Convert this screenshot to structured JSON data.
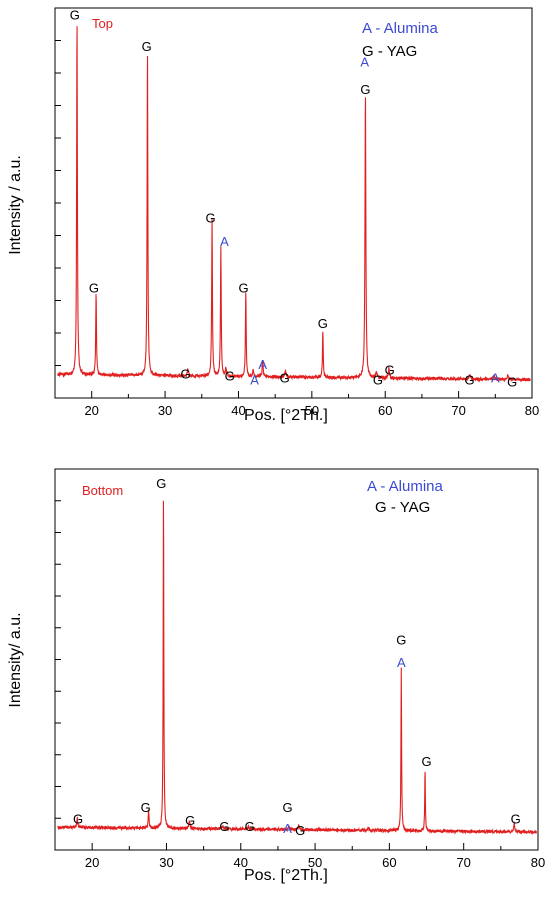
{
  "chart_data": [
    {
      "type": "line",
      "panel_label": "Top",
      "xlabel": "Pos. [°2Th.]",
      "ylabel": "Intensity / a.u.",
      "xlim": [
        15,
        80
      ],
      "xticks": [
        20,
        30,
        40,
        50,
        60,
        70,
        80
      ],
      "ylim": [
        0,
        100
      ],
      "baseline": 6,
      "legend": {
        "position": "top-right",
        "entries": [
          {
            "text": "A - Alumina",
            "color": "#3b4bd1"
          },
          {
            "text": "G - YAG",
            "color": "#000000"
          }
        ]
      },
      "line_color": "#e02020",
      "peaks": [
        {
          "x": 18.0,
          "y": 92,
          "w": 0.12
        },
        {
          "x": 20.6,
          "y": 21,
          "w": 0.12
        },
        {
          "x": 27.6,
          "y": 84,
          "w": 0.12
        },
        {
          "x": 33.1,
          "y": 1.5,
          "w": 0.2
        },
        {
          "x": 36.4,
          "y": 40,
          "w": 0.12
        },
        {
          "x": 37.6,
          "y": 33,
          "w": 0.12
        },
        {
          "x": 38.3,
          "y": 2,
          "w": 0.2
        },
        {
          "x": 41.0,
          "y": 22,
          "w": 0.12
        },
        {
          "x": 42.0,
          "y": 2,
          "w": 0.15
        },
        {
          "x": 43.3,
          "y": 4,
          "w": 0.15
        },
        {
          "x": 46.4,
          "y": 1.5,
          "w": 0.2
        },
        {
          "x": 51.5,
          "y": 12,
          "w": 0.12
        },
        {
          "x": 57.3,
          "y": 73,
          "w": 0.14
        },
        {
          "x": 58.8,
          "y": 1.5,
          "w": 0.2
        },
        {
          "x": 60.5,
          "y": 2.5,
          "w": 0.2
        },
        {
          "x": 71.5,
          "y": 1,
          "w": 0.2
        },
        {
          "x": 74.8,
          "y": 1,
          "w": 0.2
        },
        {
          "x": 76.7,
          "y": 1,
          "w": 0.2
        }
      ],
      "annotations": [
        {
          "text": "G",
          "x": 17.7,
          "y": 97,
          "kind": "G"
        },
        {
          "text": "G",
          "x": 20.3,
          "y": 27,
          "kind": "G"
        },
        {
          "text": "G",
          "x": 27.5,
          "y": 89,
          "kind": "G"
        },
        {
          "text": "G",
          "x": 32.8,
          "y": 5,
          "kind": "G"
        },
        {
          "text": "G",
          "x": 36.2,
          "y": 45,
          "kind": "G"
        },
        {
          "text": "A",
          "x": 38.1,
          "y": 39,
          "kind": "A"
        },
        {
          "text": "G",
          "x": 38.8,
          "y": 4.5,
          "kind": "G"
        },
        {
          "text": "G",
          "x": 40.7,
          "y": 27,
          "kind": "G"
        },
        {
          "text": "A",
          "x": 42.2,
          "y": 3.5,
          "kind": "A"
        },
        {
          "text": "A",
          "x": 43.3,
          "y": 7.5,
          "kind": "A"
        },
        {
          "text": "G",
          "x": 46.3,
          "y": 4,
          "kind": "G"
        },
        {
          "text": "G",
          "x": 51.5,
          "y": 18,
          "kind": "G"
        },
        {
          "text": "A",
          "x": 57.2,
          "y": 85,
          "kind": "A"
        },
        {
          "text": "G",
          "x": 57.3,
          "y": 78,
          "kind": "G"
        },
        {
          "text": "G",
          "x": 59.0,
          "y": 3.5,
          "kind": "G"
        },
        {
          "text": "G",
          "x": 60.6,
          "y": 6,
          "kind": "G"
        },
        {
          "text": "G",
          "x": 71.5,
          "y": 3.5,
          "kind": "G"
        },
        {
          "text": "A",
          "x": 75.0,
          "y": 4,
          "kind": "A"
        },
        {
          "text": "G",
          "x": 77.3,
          "y": 3,
          "kind": "G"
        }
      ]
    },
    {
      "type": "line",
      "panel_label": "Bottom",
      "xlabel": "Pos. [°2Th.]",
      "ylabel": "Intensity/ a.u.",
      "xlim": [
        15,
        80
      ],
      "xticks": [
        20,
        30,
        40,
        50,
        60,
        70,
        80
      ],
      "ylim": [
        0,
        100
      ],
      "baseline": 6,
      "legend": {
        "position": "top-right",
        "entries": [
          {
            "text": "A - Alumina",
            "color": "#3b4bd1"
          },
          {
            "text": "G - YAG",
            "color": "#000000"
          }
        ]
      },
      "line_color": "#e02020",
      "peaks": [
        {
          "x": 18.0,
          "y": 2.8,
          "w": 0.12
        },
        {
          "x": 27.6,
          "y": 5,
          "w": 0.12
        },
        {
          "x": 29.6,
          "y": 89,
          "w": 0.1
        },
        {
          "x": 33.1,
          "y": 2.3,
          "w": 0.15
        },
        {
          "x": 37.5,
          "y": 0.6,
          "w": 0.2
        },
        {
          "x": 41.0,
          "y": 0.8,
          "w": 0.2
        },
        {
          "x": 46.5,
          "y": 0.8,
          "w": 0.2
        },
        {
          "x": 47.8,
          "y": 1.4,
          "w": 0.15
        },
        {
          "x": 57.2,
          "y": 0.7,
          "w": 0.2
        },
        {
          "x": 61.6,
          "y": 43,
          "w": 0.1
        },
        {
          "x": 64.8,
          "y": 16,
          "w": 0.1
        },
        {
          "x": 76.8,
          "y": 2.3,
          "w": 0.15
        }
      ],
      "annotations": [
        {
          "text": "G",
          "x": 18.1,
          "y": 7,
          "kind": "G"
        },
        {
          "text": "G",
          "x": 27.2,
          "y": 10,
          "kind": "G"
        },
        {
          "text": "G",
          "x": 29.3,
          "y": 95,
          "kind": "G"
        },
        {
          "text": "G",
          "x": 33.2,
          "y": 6.5,
          "kind": "G"
        },
        {
          "text": "G",
          "x": 37.8,
          "y": 5,
          "kind": "G"
        },
        {
          "text": "G",
          "x": 41.2,
          "y": 5,
          "kind": "G"
        },
        {
          "text": "G",
          "x": 46.3,
          "y": 10,
          "kind": "G"
        },
        {
          "text": "A",
          "x": 46.3,
          "y": 4.5,
          "kind": "A"
        },
        {
          "text": "G",
          "x": 48.0,
          "y": 4,
          "kind": "G"
        },
        {
          "text": "G",
          "x": 61.6,
          "y": 54,
          "kind": "G"
        },
        {
          "text": "A",
          "x": 61.6,
          "y": 48,
          "kind": "A"
        },
        {
          "text": "G",
          "x": 65.0,
          "y": 22,
          "kind": "G"
        },
        {
          "text": "G",
          "x": 77.0,
          "y": 7,
          "kind": "G"
        }
      ]
    }
  ]
}
